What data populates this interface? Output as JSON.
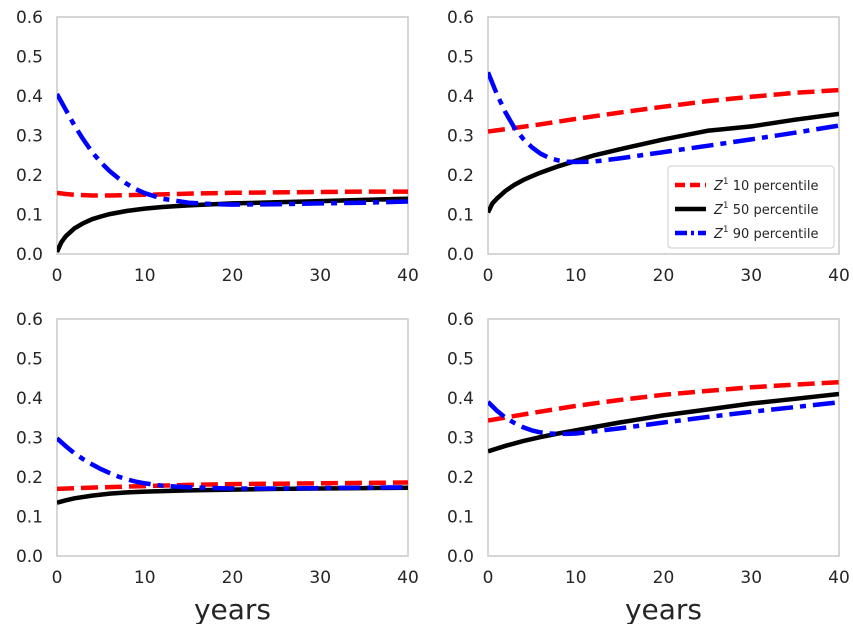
{
  "chart_data": [
    {
      "type": "line",
      "panel": "top-left",
      "xlim": [
        0,
        40
      ],
      "ylim": [
        0,
        0.6
      ],
      "xticks": [
        "0",
        "10",
        "20",
        "30",
        "40"
      ],
      "yticks": [
        "0.0",
        "0.1",
        "0.2",
        "0.3",
        "0.4",
        "0.5",
        "0.6"
      ],
      "xlabel": "",
      "ylabel": "",
      "series": [
        {
          "key": "p10",
          "color": "#ff0000",
          "style": "dashed",
          "x": [
            0,
            1,
            2,
            3,
            4,
            5,
            6,
            8,
            10,
            12,
            15,
            20,
            25,
            30,
            35,
            40
          ],
          "y": [
            0.155,
            0.152,
            0.15,
            0.149,
            0.148,
            0.148,
            0.148,
            0.149,
            0.15,
            0.151,
            0.153,
            0.155,
            0.156,
            0.157,
            0.158,
            0.158
          ]
        },
        {
          "key": "p50",
          "color": "#000000",
          "style": "solid",
          "x": [
            0,
            0.5,
            1,
            2,
            3,
            4,
            5,
            6,
            8,
            10,
            12,
            15,
            20,
            25,
            30,
            35,
            40
          ],
          "y": [
            0.005,
            0.03,
            0.045,
            0.065,
            0.078,
            0.088,
            0.095,
            0.101,
            0.109,
            0.115,
            0.119,
            0.123,
            0.128,
            0.131,
            0.134,
            0.137,
            0.14
          ]
        },
        {
          "key": "p90",
          "color": "#0000ff",
          "style": "dashdot",
          "x": [
            0,
            1,
            2,
            3,
            4,
            5,
            6,
            7,
            8,
            9,
            10,
            12,
            15,
            18,
            20,
            25,
            30,
            35,
            40
          ],
          "y": [
            0.405,
            0.365,
            0.325,
            0.29,
            0.258,
            0.232,
            0.21,
            0.192,
            0.177,
            0.164,
            0.154,
            0.14,
            0.13,
            0.126,
            0.125,
            0.126,
            0.128,
            0.13,
            0.133
          ]
        }
      ]
    },
    {
      "type": "line",
      "panel": "top-right",
      "xlim": [
        0,
        40
      ],
      "ylim": [
        0,
        0.6
      ],
      "xticks": [
        "0",
        "10",
        "20",
        "30",
        "40"
      ],
      "yticks": [
        "0.0",
        "0.1",
        "0.2",
        "0.3",
        "0.4",
        "0.5",
        "0.6"
      ],
      "xlabel": "",
      "ylabel": "",
      "legend": {
        "placement": "right",
        "entries": [
          {
            "key": "p10",
            "symbol": "Z",
            "sup": "1",
            "text": " 10 percentile"
          },
          {
            "key": "p50",
            "symbol": "Z",
            "sup": "1",
            "text": " 50 percentile"
          },
          {
            "key": "p90",
            "symbol": "Z",
            "sup": "1",
            "text": " 90 percentile"
          }
        ]
      },
      "series": [
        {
          "key": "p10",
          "color": "#ff0000",
          "style": "dashed",
          "x": [
            0,
            5,
            10,
            15,
            20,
            25,
            30,
            35,
            40
          ],
          "y": [
            0.31,
            0.325,
            0.342,
            0.358,
            0.373,
            0.387,
            0.398,
            0.408,
            0.415
          ]
        },
        {
          "key": "p50",
          "color": "#000000",
          "style": "solid",
          "x": [
            0,
            0.5,
            1,
            2,
            3,
            4,
            5,
            6,
            8,
            10,
            12,
            15,
            20,
            25,
            30,
            35,
            40
          ],
          "y": [
            0.105,
            0.128,
            0.14,
            0.16,
            0.175,
            0.187,
            0.197,
            0.206,
            0.222,
            0.236,
            0.249,
            0.265,
            0.29,
            0.312,
            0.323,
            0.34,
            0.355
          ]
        },
        {
          "key": "p90",
          "color": "#0000ff",
          "style": "dashdot",
          "x": [
            0,
            1,
            2,
            3,
            4,
            5,
            6,
            7,
            8,
            9,
            10,
            12,
            15,
            20,
            25,
            30,
            35,
            40
          ],
          "y": [
            0.46,
            0.405,
            0.358,
            0.32,
            0.292,
            0.27,
            0.254,
            0.243,
            0.237,
            0.234,
            0.233,
            0.234,
            0.242,
            0.258,
            0.274,
            0.29,
            0.307,
            0.325
          ]
        }
      ]
    },
    {
      "type": "line",
      "panel": "bottom-left",
      "xlim": [
        0,
        40
      ],
      "ylim": [
        0,
        0.6
      ],
      "xticks": [
        "0",
        "10",
        "20",
        "30",
        "40"
      ],
      "yticks": [
        "0.0",
        "0.1",
        "0.2",
        "0.3",
        "0.4",
        "0.5",
        "0.6"
      ],
      "xlabel": "years",
      "ylabel": "",
      "series": [
        {
          "key": "p10",
          "color": "#ff0000",
          "style": "dashed",
          "x": [
            0,
            5,
            10,
            15,
            20,
            25,
            30,
            35,
            40
          ],
          "y": [
            0.17,
            0.174,
            0.177,
            0.18,
            0.182,
            0.183,
            0.184,
            0.185,
            0.186
          ]
        },
        {
          "key": "p50",
          "color": "#000000",
          "style": "solid",
          "x": [
            0,
            1,
            2,
            4,
            6,
            8,
            10,
            15,
            20,
            25,
            30,
            35,
            40
          ],
          "y": [
            0.135,
            0.141,
            0.146,
            0.153,
            0.158,
            0.161,
            0.163,
            0.166,
            0.168,
            0.17,
            0.171,
            0.172,
            0.173
          ]
        },
        {
          "key": "p90",
          "color": "#0000ff",
          "style": "dashdot",
          "x": [
            0,
            1,
            2,
            3,
            4,
            5,
            6,
            7,
            8,
            9,
            10,
            12,
            15,
            20,
            25,
            30,
            35,
            40
          ],
          "y": [
            0.298,
            0.278,
            0.26,
            0.245,
            0.232,
            0.22,
            0.21,
            0.201,
            0.194,
            0.188,
            0.184,
            0.178,
            0.174,
            0.171,
            0.171,
            0.172,
            0.173,
            0.174
          ]
        }
      ]
    },
    {
      "type": "line",
      "panel": "bottom-right",
      "xlim": [
        0,
        40
      ],
      "ylim": [
        0,
        0.6
      ],
      "xticks": [
        "0",
        "10",
        "20",
        "30",
        "40"
      ],
      "yticks": [
        "0.0",
        "0.1",
        "0.2",
        "0.3",
        "0.4",
        "0.5",
        "0.6"
      ],
      "xlabel": "years",
      "ylabel": "",
      "series": [
        {
          "key": "p10",
          "color": "#ff0000",
          "style": "dashed",
          "x": [
            0,
            5,
            10,
            15,
            20,
            25,
            30,
            35,
            40
          ],
          "y": [
            0.343,
            0.362,
            0.38,
            0.395,
            0.408,
            0.418,
            0.427,
            0.434,
            0.44
          ]
        },
        {
          "key": "p50",
          "color": "#000000",
          "style": "solid",
          "x": [
            0,
            2,
            4,
            6,
            8,
            10,
            15,
            20,
            25,
            30,
            35,
            40
          ],
          "y": [
            0.265,
            0.279,
            0.291,
            0.301,
            0.31,
            0.318,
            0.338,
            0.356,
            0.371,
            0.386,
            0.398,
            0.41
          ]
        },
        {
          "key": "p90",
          "color": "#0000ff",
          "style": "dashdot",
          "x": [
            0,
            1,
            2,
            3,
            4,
            5,
            6,
            7,
            8,
            9,
            10,
            15,
            20,
            25,
            30,
            35,
            40
          ],
          "y": [
            0.39,
            0.368,
            0.35,
            0.337,
            0.326,
            0.318,
            0.313,
            0.31,
            0.309,
            0.309,
            0.31,
            0.323,
            0.338,
            0.352,
            0.365,
            0.377,
            0.389
          ]
        }
      ]
    }
  ]
}
